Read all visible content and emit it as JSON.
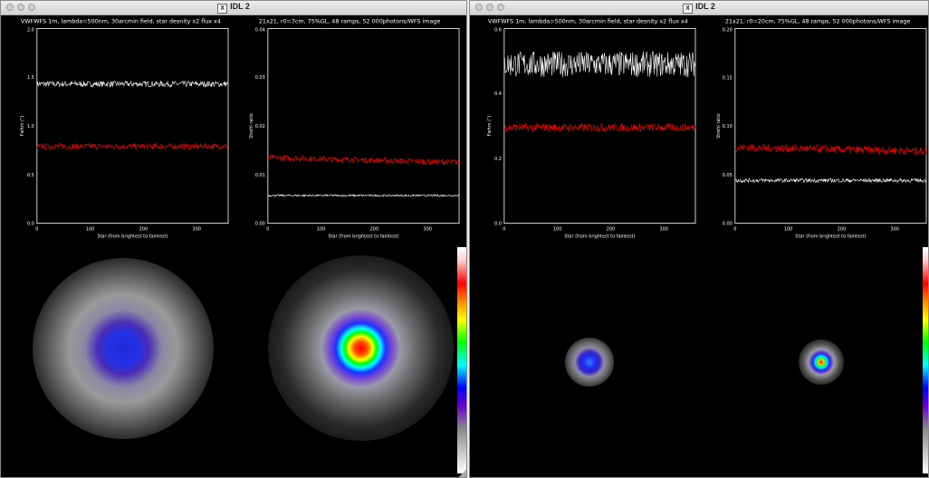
{
  "windows": [
    {
      "title": "IDL 2",
      "left_plot": {
        "title": "VWFWFS 1m, lambda=500nm, 30arcmin field, star desnity x2 flux x4",
        "xlabel": "Star (from brightest to faintest)",
        "ylabel": "Fwhm (\")",
        "yticks": [
          "0.0",
          "0.5",
          "1.0",
          "1.5",
          "2.0"
        ],
        "xticks": [
          "0",
          "100",
          "200",
          "300"
        ]
      },
      "right_plot": {
        "title": "21x21, r0=7cm, 75%GL, 48 ramps, 52 000photons/WFS image",
        "xlabel": "Star (from brightest to faintest)",
        "ylabel": "Strehl ratio",
        "yticks": [
          "0.00",
          "0.01",
          "0.02",
          "0.03",
          "0.04"
        ],
        "xticks": [
          "0",
          "100",
          "200",
          "300"
        ]
      }
    },
    {
      "title": "IDL 2",
      "left_plot": {
        "title": "VWFWFS 1m, lambda=500nm, 30arcmin field, star desnity x2 flux x4",
        "xlabel": "Star (from brightest to faintest)",
        "ylabel": "Fwhm (\")",
        "yticks": [
          "0.0",
          "0.2",
          "0.4",
          "0.6"
        ],
        "xticks": [
          "0",
          "100",
          "200",
          "300"
        ]
      },
      "right_plot": {
        "title": "21x21, r0=20cm, 75%GL, 48 ramps, 52 000photons/WFS image",
        "xlabel": "Star (from brightest to faintest)",
        "ylabel": "Strehl ratio",
        "yticks": [
          "0.00",
          "0.05",
          "0.10",
          "0.15",
          "0.20"
        ],
        "xticks": [
          "0",
          "100",
          "200",
          "300"
        ]
      }
    }
  ],
  "chart_data": [
    {
      "type": "line",
      "window": 1,
      "ylim": [
        0,
        2.0
      ],
      "xlim": [
        0,
        360
      ],
      "series": [
        {
          "color": "#ffffff",
          "level": 1.43,
          "noise": 0.03
        },
        {
          "color": "#ff0000",
          "level": 0.79,
          "noise": 0.03
        }
      ]
    },
    {
      "type": "line",
      "window": 1,
      "ylim": [
        0,
        0.04
      ],
      "xlim": [
        0,
        360
      ],
      "series": [
        {
          "color": "#ff0000",
          "level": 0.0135,
          "noise": 0.0006,
          "trend": -0.001
        },
        {
          "color": "#ffffff",
          "level": 0.0057,
          "noise": 0.0002
        }
      ]
    },
    {
      "type": "line",
      "window": 2,
      "ylim": [
        0,
        0.6
      ],
      "xlim": [
        0,
        360
      ],
      "series": [
        {
          "color": "#ffffff",
          "level": 0.49,
          "noise": 0.04
        },
        {
          "color": "#ff0000",
          "level": 0.295,
          "noise": 0.012
        }
      ]
    },
    {
      "type": "line",
      "window": 2,
      "ylim": [
        0,
        0.2
      ],
      "xlim": [
        0,
        360
      ],
      "series": [
        {
          "color": "#ff0000",
          "level": 0.078,
          "noise": 0.004,
          "trend": -0.004
        },
        {
          "color": "#ffffff",
          "level": 0.044,
          "noise": 0.002
        }
      ]
    }
  ],
  "colors": {
    "window_bg": "#000000",
    "axis": "#ffffff",
    "series_red": "#ff0000",
    "series_white": "#ffffff"
  }
}
